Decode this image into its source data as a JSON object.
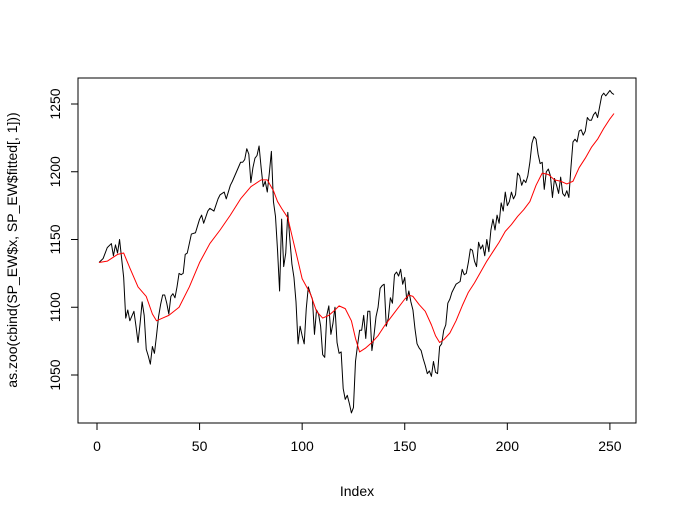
{
  "chart_data": {
    "type": "line",
    "title": "",
    "xlabel": "Index",
    "ylabel": "as.zoo(cbind(SP_EW$x, SP_EW$fitted[, 1]))",
    "xlim": [
      0,
      252
    ],
    "ylim": [
      1022,
      1258
    ],
    "x_ticks": [
      0,
      50,
      100,
      150,
      200,
      250
    ],
    "y_ticks": [
      1050,
      1100,
      1150,
      1200,
      1250
    ],
    "grid": false,
    "legend": "none",
    "series": [
      {
        "color": "#000000",
        "knots": [
          [
            1,
            1133
          ],
          [
            3,
            1136
          ],
          [
            5,
            1144
          ],
          [
            7,
            1147
          ],
          [
            8,
            1138
          ],
          [
            9,
            1146
          ],
          [
            10,
            1140
          ],
          [
            11,
            1150
          ],
          [
            12,
            1136
          ],
          [
            13,
            1122
          ],
          [
            14,
            1092
          ],
          [
            15,
            1098
          ],
          [
            16,
            1090
          ],
          [
            18,
            1097
          ],
          [
            19,
            1086
          ],
          [
            20,
            1074
          ],
          [
            21,
            1088
          ],
          [
            22,
            1104
          ],
          [
            23,
            1094
          ],
          [
            24,
            1069
          ],
          [
            25,
            1064
          ],
          [
            26,
            1058
          ],
          [
            27,
            1071
          ],
          [
            28,
            1066
          ],
          [
            29,
            1079
          ],
          [
            30,
            1093
          ],
          [
            31,
            1102
          ],
          [
            32,
            1109
          ],
          [
            33,
            1109
          ],
          [
            34,
            1103
          ],
          [
            35,
            1095
          ],
          [
            36,
            1108
          ],
          [
            37,
            1110
          ],
          [
            38,
            1107
          ],
          [
            39,
            1115
          ],
          [
            40,
            1125
          ],
          [
            41,
            1124
          ],
          [
            42,
            1125
          ],
          [
            43,
            1139
          ],
          [
            44,
            1140
          ],
          [
            46,
            1154
          ],
          [
            48,
            1155
          ],
          [
            49,
            1160
          ],
          [
            50,
            1165
          ],
          [
            51,
            1168
          ],
          [
            52,
            1162
          ],
          [
            54,
            1171
          ],
          [
            55,
            1173
          ],
          [
            57,
            1171
          ],
          [
            59,
            1180
          ],
          [
            60,
            1183
          ],
          [
            62,
            1185
          ],
          [
            63,
            1180
          ],
          [
            65,
            1190
          ],
          [
            66,
            1193
          ],
          [
            68,
            1200
          ],
          [
            70,
            1207
          ],
          [
            71,
            1207
          ],
          [
            72,
            1209
          ],
          [
            73,
            1217
          ],
          [
            74,
            1213
          ],
          [
            75,
            1192
          ],
          [
            76,
            1203
          ],
          [
            77,
            1210
          ],
          [
            78,
            1212
          ],
          [
            79,
            1219
          ],
          [
            80,
            1203
          ],
          [
            81,
            1189
          ],
          [
            82,
            1193
          ],
          [
            83,
            1185
          ],
          [
            84,
            1199
          ],
          [
            85,
            1215
          ],
          [
            86,
            1178
          ],
          [
            87,
            1167
          ],
          [
            88,
            1142
          ],
          [
            89,
            1112
          ],
          [
            90,
            1165
          ],
          [
            91,
            1130
          ],
          [
            92,
            1140
          ],
          [
            93,
            1170
          ],
          [
            94,
            1150
          ],
          [
            95,
            1132
          ],
          [
            96,
            1122
          ],
          [
            97,
            1104
          ],
          [
            98,
            1073
          ],
          [
            99,
            1086
          ],
          [
            100,
            1079
          ],
          [
            101,
            1073
          ],
          [
            102,
            1099
          ],
          [
            103,
            1115
          ],
          [
            104,
            1110
          ],
          [
            105,
            1106
          ],
          [
            106,
            1080
          ],
          [
            107,
            1098
          ],
          [
            108,
            1095
          ],
          [
            109,
            1086
          ],
          [
            110,
            1065
          ],
          [
            111,
            1063
          ],
          [
            112,
            1094
          ],
          [
            113,
            1101
          ],
          [
            114,
            1080
          ],
          [
            115,
            1088
          ],
          [
            116,
            1100
          ],
          [
            117,
            1074
          ],
          [
            118,
            1066
          ],
          [
            119,
            1067
          ],
          [
            120,
            1040
          ],
          [
            121,
            1032
          ],
          [
            122,
            1035
          ],
          [
            123,
            1029
          ],
          [
            124,
            1022
          ],
          [
            125,
            1026
          ],
          [
            126,
            1060
          ],
          [
            127,
            1072
          ],
          [
            128,
            1083
          ],
          [
            129,
            1083
          ],
          [
            130,
            1094
          ],
          [
            131,
            1077
          ],
          [
            132,
            1097
          ],
          [
            133,
            1097
          ],
          [
            134,
            1068
          ],
          [
            135,
            1079
          ],
          [
            136,
            1093
          ],
          [
            137,
            1100
          ],
          [
            138,
            1114
          ],
          [
            139,
            1116
          ],
          [
            140,
            1117
          ],
          [
            141,
            1086
          ],
          [
            142,
            1092
          ],
          [
            143,
            1107
          ],
          [
            144,
            1103
          ],
          [
            145,
            1124
          ],
          [
            146,
            1126
          ],
          [
            147,
            1123
          ],
          [
            148,
            1128
          ],
          [
            149,
            1117
          ],
          [
            150,
            1122
          ],
          [
            151,
            1105
          ],
          [
            152,
            1112
          ],
          [
            153,
            1104
          ],
          [
            154,
            1098
          ],
          [
            155,
            1084
          ],
          [
            156,
            1073
          ],
          [
            157,
            1070
          ],
          [
            158,
            1068
          ],
          [
            159,
            1062
          ],
          [
            160,
            1057
          ],
          [
            161,
            1051
          ],
          [
            162,
            1053
          ],
          [
            163,
            1049
          ],
          [
            164,
            1060
          ],
          [
            165,
            1052
          ],
          [
            166,
            1051
          ],
          [
            167,
            1071
          ],
          [
            168,
            1073
          ],
          [
            169,
            1083
          ],
          [
            170,
            1087
          ],
          [
            171,
            1103
          ],
          [
            172,
            1106
          ],
          [
            173,
            1111
          ],
          [
            174,
            1114
          ],
          [
            175,
            1117
          ],
          [
            176,
            1118
          ],
          [
            177,
            1119
          ],
          [
            178,
            1128
          ],
          [
            179,
            1124
          ],
          [
            180,
            1125
          ],
          [
            181,
            1133
          ],
          [
            182,
            1143
          ],
          [
            183,
            1142
          ],
          [
            184,
            1134
          ],
          [
            185,
            1130
          ],
          [
            186,
            1148
          ],
          [
            187,
            1143
          ],
          [
            188,
            1146
          ],
          [
            189,
            1138
          ],
          [
            190,
            1150
          ],
          [
            191,
            1141
          ],
          [
            192,
            1157
          ],
          [
            193,
            1165
          ],
          [
            194,
            1157
          ],
          [
            195,
            1168
          ],
          [
            196,
            1162
          ],
          [
            197,
            1177
          ],
          [
            198,
            1171
          ],
          [
            199,
            1185
          ],
          [
            200,
            1175
          ],
          [
            201,
            1178
          ],
          [
            202,
            1185
          ],
          [
            203,
            1180
          ],
          [
            204,
            1183
          ],
          [
            205,
            1199
          ],
          [
            206,
            1197
          ],
          [
            207,
            1190
          ],
          [
            208,
            1194
          ],
          [
            209,
            1192
          ],
          [
            210,
            1197
          ],
          [
            211,
            1207
          ],
          [
            212,
            1221
          ],
          [
            213,
            1226
          ],
          [
            214,
            1224
          ],
          [
            215,
            1213
          ],
          [
            216,
            1206
          ],
          [
            217,
            1207
          ],
          [
            218,
            1187
          ],
          [
            219,
            1200
          ],
          [
            220,
            1202
          ],
          [
            221,
            1197
          ],
          [
            222,
            1181
          ],
          [
            223,
            1195
          ],
          [
            224,
            1190
          ],
          [
            225,
            1184
          ],
          [
            226,
            1196
          ],
          [
            227,
            1184
          ],
          [
            228,
            1182
          ],
          [
            229,
            1186
          ],
          [
            230,
            1181
          ],
          [
            231,
            1203
          ],
          [
            232,
            1222
          ],
          [
            233,
            1224
          ],
          [
            234,
            1222
          ],
          [
            235,
            1230
          ],
          [
            236,
            1231
          ],
          [
            237,
            1227
          ],
          [
            238,
            1230
          ],
          [
            239,
            1240
          ],
          [
            240,
            1238
          ],
          [
            241,
            1238
          ],
          [
            242,
            1242
          ],
          [
            243,
            1244
          ],
          [
            244,
            1240
          ],
          [
            245,
            1248
          ],
          [
            246,
            1256
          ],
          [
            247,
            1258
          ],
          [
            248,
            1256
          ],
          [
            249,
            1258
          ],
          [
            250,
            1260
          ],
          [
            251,
            1258
          ],
          [
            252,
            1257
          ]
        ]
      },
      {
        "color": "#ff0000",
        "knots": [
          [
            1,
            1133
          ],
          [
            5,
            1134
          ],
          [
            10,
            1139
          ],
          [
            13,
            1140
          ],
          [
            16,
            1129
          ],
          [
            20,
            1115
          ],
          [
            24,
            1108
          ],
          [
            27,
            1095
          ],
          [
            29,
            1090
          ],
          [
            32,
            1092
          ],
          [
            35,
            1094
          ],
          [
            40,
            1100
          ],
          [
            45,
            1115
          ],
          [
            50,
            1133
          ],
          [
            55,
            1147
          ],
          [
            60,
            1157
          ],
          [
            65,
            1168
          ],
          [
            70,
            1180
          ],
          [
            75,
            1189
          ],
          [
            80,
            1194
          ],
          [
            83,
            1194
          ],
          [
            86,
            1186
          ],
          [
            88,
            1178
          ],
          [
            90,
            1173
          ],
          [
            93,
            1166
          ],
          [
            95,
            1153
          ],
          [
            98,
            1134
          ],
          [
            100,
            1121
          ],
          [
            104,
            1110
          ],
          [
            107,
            1097
          ],
          [
            110,
            1092
          ],
          [
            113,
            1094
          ],
          [
            116,
            1098
          ],
          [
            118,
            1101
          ],
          [
            121,
            1099
          ],
          [
            124,
            1090
          ],
          [
            126,
            1077
          ],
          [
            128,
            1067
          ],
          [
            131,
            1070
          ],
          [
            134,
            1074
          ],
          [
            137,
            1079
          ],
          [
            140,
            1086
          ],
          [
            143,
            1092
          ],
          [
            146,
            1098
          ],
          [
            150,
            1106
          ],
          [
            152,
            1109
          ],
          [
            154,
            1108
          ],
          [
            157,
            1102
          ],
          [
            160,
            1097
          ],
          [
            163,
            1087
          ],
          [
            165,
            1079
          ],
          [
            167,
            1074
          ],
          [
            169,
            1076
          ],
          [
            172,
            1081
          ],
          [
            175,
            1090
          ],
          [
            178,
            1101
          ],
          [
            181,
            1111
          ],
          [
            184,
            1118
          ],
          [
            187,
            1126
          ],
          [
            190,
            1134
          ],
          [
            193,
            1141
          ],
          [
            196,
            1148
          ],
          [
            199,
            1156
          ],
          [
            202,
            1161
          ],
          [
            205,
            1167
          ],
          [
            208,
            1172
          ],
          [
            211,
            1178
          ],
          [
            214,
            1190
          ],
          [
            217,
            1199
          ],
          [
            220,
            1198
          ],
          [
            223,
            1194
          ],
          [
            226,
            1193
          ],
          [
            229,
            1191
          ],
          [
            232,
            1193
          ],
          [
            235,
            1203
          ],
          [
            238,
            1210
          ],
          [
            241,
            1218
          ],
          [
            244,
            1224
          ],
          [
            247,
            1232
          ],
          [
            250,
            1239
          ],
          [
            252,
            1243
          ]
        ]
      }
    ]
  }
}
